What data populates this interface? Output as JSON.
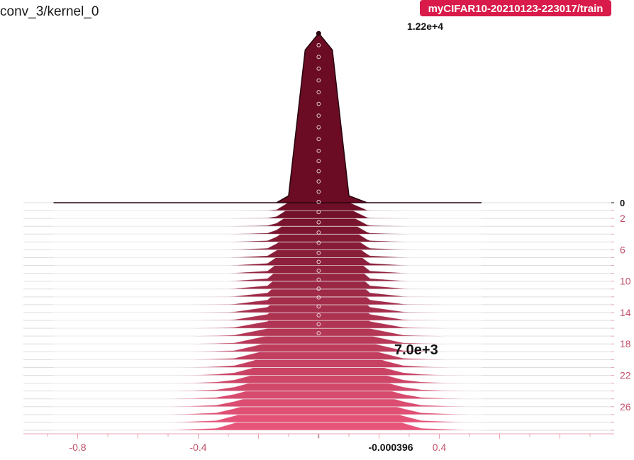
{
  "title": "conv_3/kernel_0",
  "run_badge": {
    "label": "myCIFAR10-20210123-223017/train",
    "color": "#d81b4a"
  },
  "chart_data": {
    "type": "area",
    "title": "conv_3/kernel_0",
    "mode": "offset-histograms",
    "x_range": [
      -0.98,
      0.98
    ],
    "x_ticks": [
      -0.8,
      -0.4,
      0.4
    ],
    "x_tick_labels": [
      "-0.8",
      "-0.4",
      "0.4"
    ],
    "hover_x_label": "-0.000396",
    "hover_x_value": -0.000396,
    "step_range": [
      0,
      29
    ],
    "step_ticks": [
      0,
      2,
      6,
      10,
      14,
      18,
      22,
      26
    ],
    "step_tick_labels": [
      "0",
      "2",
      "6",
      "10",
      "14",
      "18",
      "22",
      "26"
    ],
    "peak_label": "1.22e+4",
    "hover_count_label": "7.0e+3",
    "color_first": "#6b0c24",
    "color_last": "#e8557a",
    "histograms": [
      {
        "step": 0,
        "x": [
          -0.88,
          -0.14,
          -0.1,
          -0.045,
          0,
          0.045,
          0.1,
          0.16,
          0.54
        ],
        "y": [
          0,
          0,
          500,
          11000,
          12200,
          11000,
          500,
          0,
          0
        ]
      },
      {
        "step": 10,
        "x": [
          -0.88,
          -0.3,
          -0.17,
          -0.1,
          -0.045,
          0,
          0.045,
          0.1,
          0.17,
          0.3,
          0.54
        ],
        "y": [
          0,
          0,
          200,
          1500,
          8000,
          9400,
          8000,
          1500,
          200,
          0,
          0
        ]
      },
      {
        "step": 20,
        "x": [
          -0.88,
          -0.42,
          -0.28,
          -0.17,
          -0.1,
          -0.045,
          0,
          0.045,
          0.1,
          0.17,
          0.28,
          0.42,
          0.54
        ],
        "y": [
          0,
          0,
          100,
          700,
          2200,
          5800,
          7700,
          5800,
          2200,
          700,
          100,
          0,
          0
        ]
      },
      {
        "step": 29,
        "x": [
          -0.88,
          -0.5,
          -0.34,
          -0.22,
          -0.12,
          -0.06,
          0,
          0.06,
          0.12,
          0.22,
          0.34,
          0.5,
          0.54
        ],
        "y": [
          0,
          0,
          150,
          900,
          3000,
          5800,
          7000,
          5800,
          3000,
          900,
          150,
          0,
          0
        ]
      }
    ]
  }
}
